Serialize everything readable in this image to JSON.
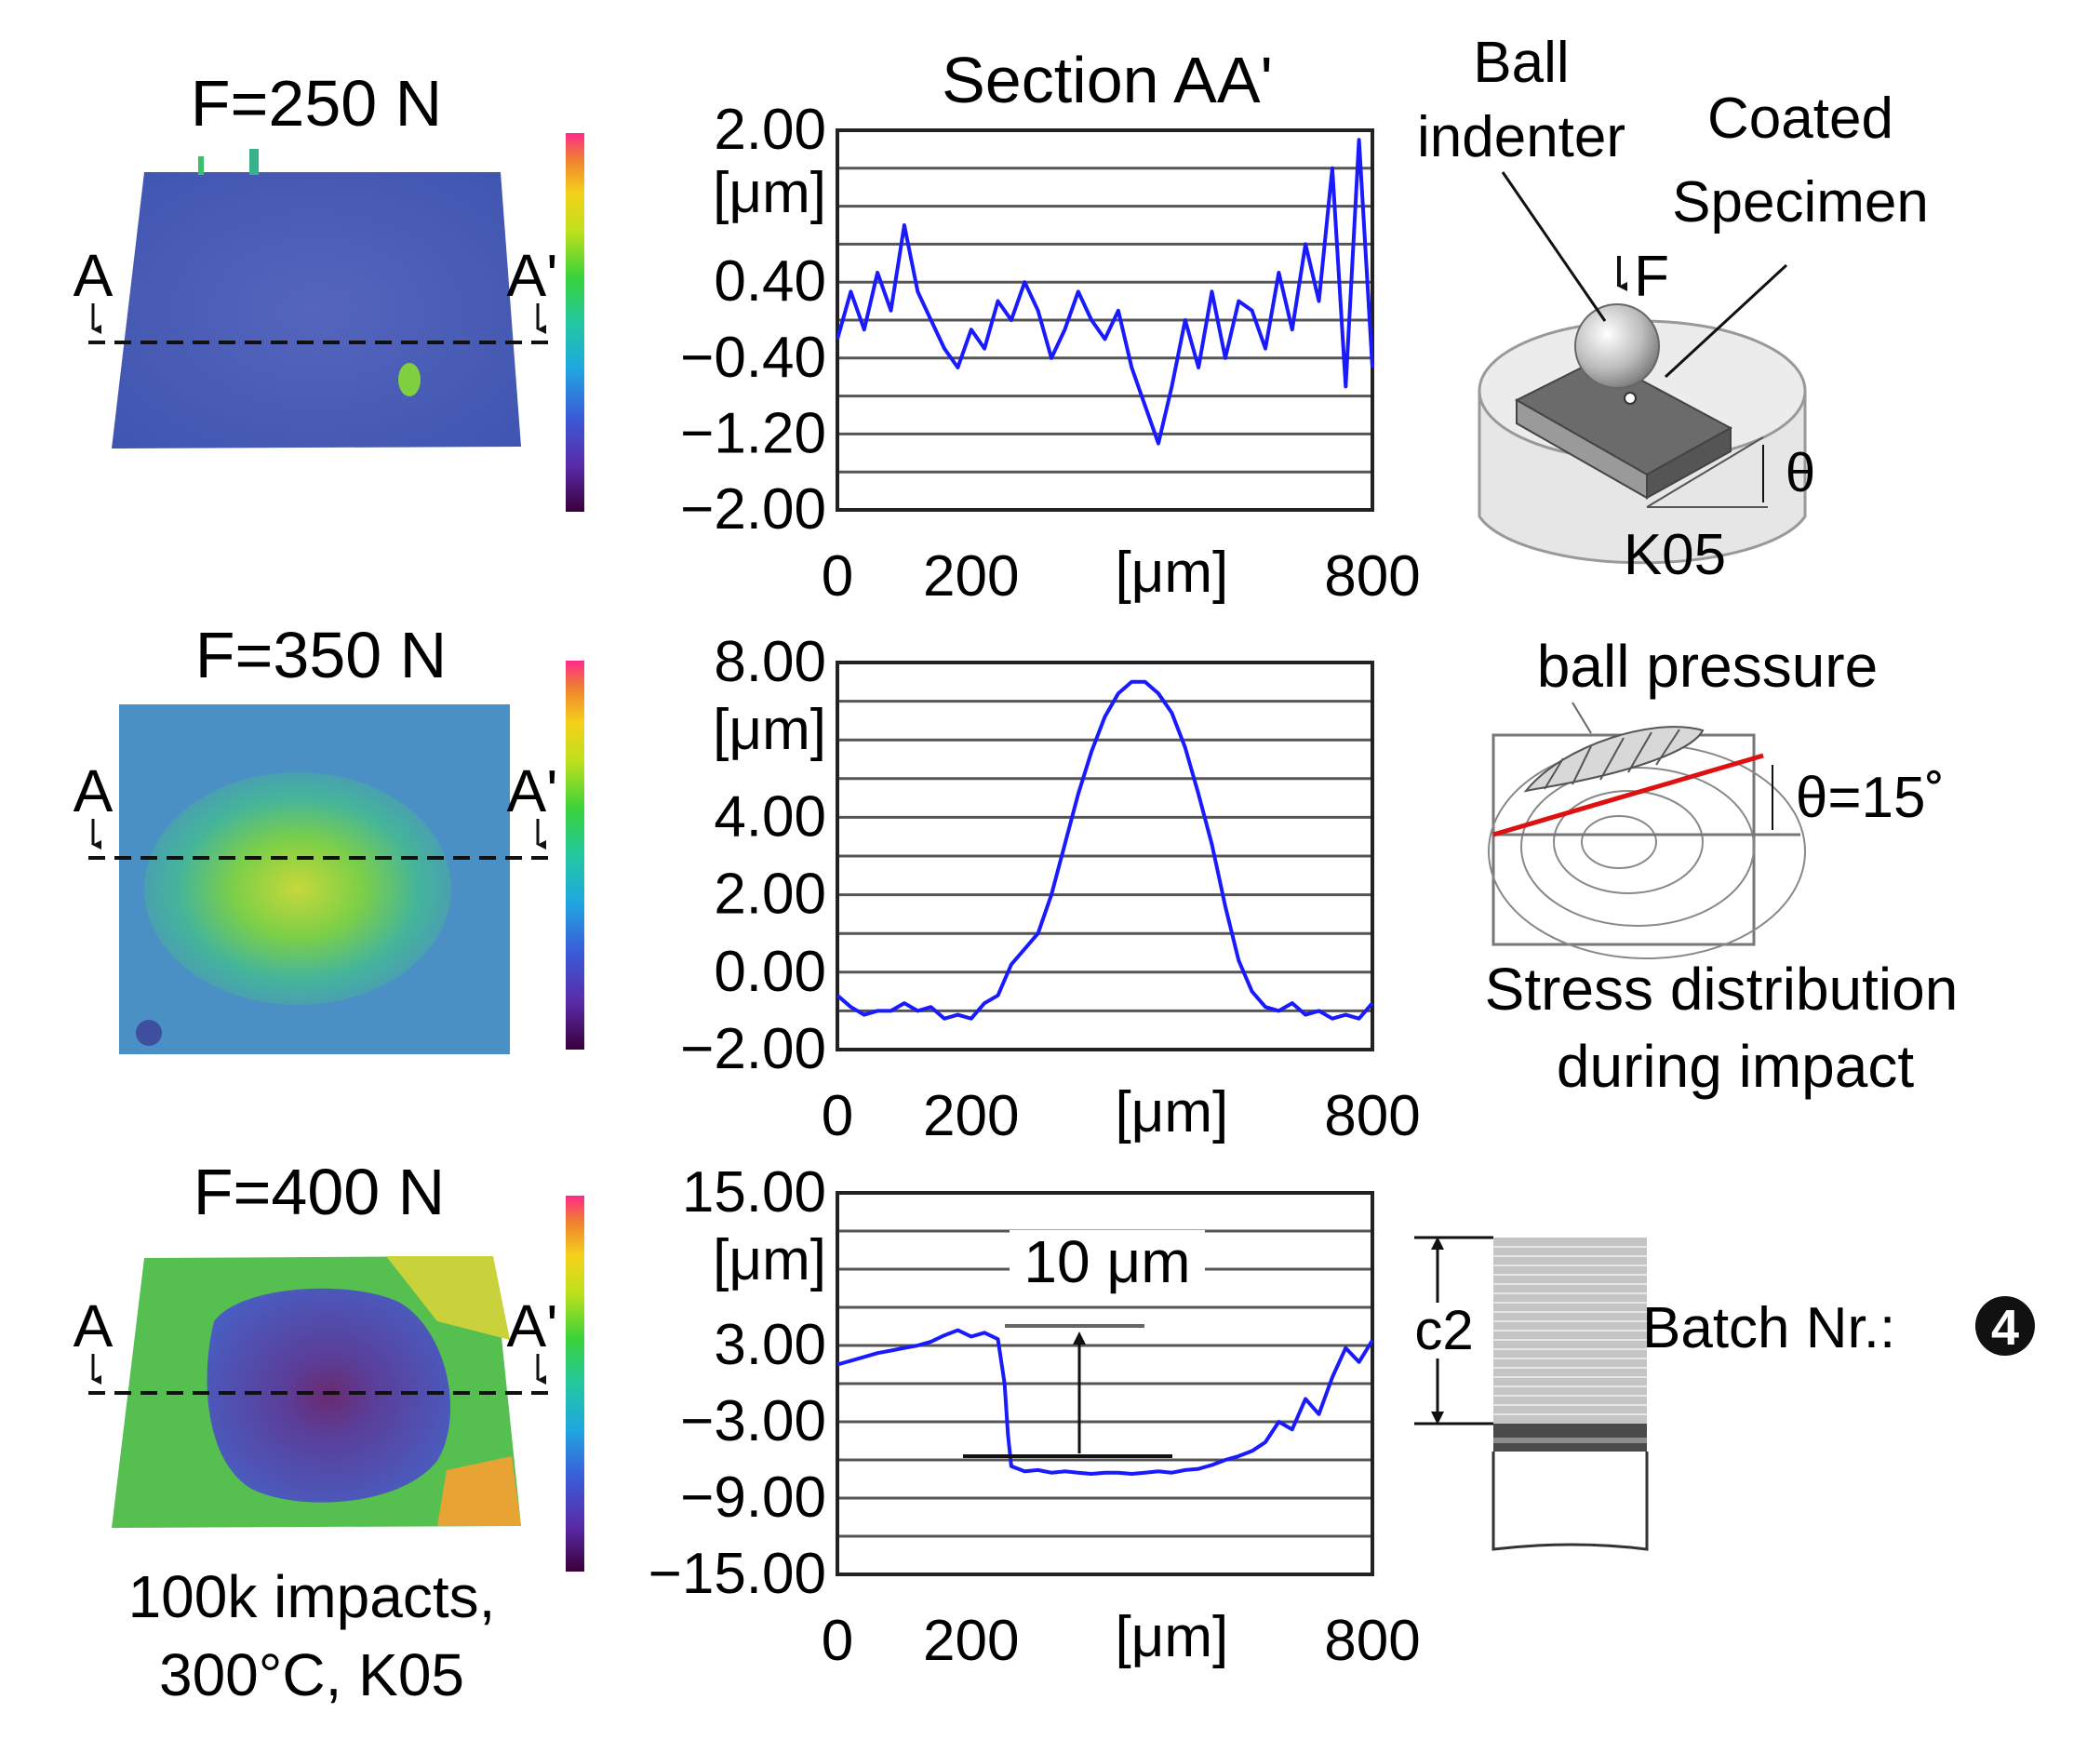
{
  "charts_header": {
    "section_title": "Section AA'"
  },
  "surface_maps": [
    {
      "force_label": "F=250 N",
      "marker_left": "A",
      "marker_right": "A'"
    },
    {
      "force_label": "F=350 N",
      "marker_left": "A",
      "marker_right": "A'"
    },
    {
      "force_label": "F=400 N",
      "marker_left": "A",
      "marker_right": "A'"
    }
  ],
  "conditions": {
    "line1": "100k impacts,",
    "line2": "300°C, K05"
  },
  "colors": {
    "profile": "#1a1aff",
    "red_line": "#dd1111",
    "map_blue": "#4f5fb8",
    "map_green": "#4fbf5a"
  },
  "chart_data": [
    {
      "type": "line",
      "title": "Section AA'",
      "ylabel": "[μm]",
      "xlabel": "[μm]",
      "xlim": [
        0,
        800
      ],
      "ylim": [
        -2.0,
        2.0
      ],
      "ytick_labels": [
        "2.00",
        "0.40",
        "−0.40",
        "−1.20",
        "−2.00"
      ],
      "xtick_labels": [
        "0",
        "200",
        "800"
      ],
      "x": [
        0,
        20,
        40,
        60,
        80,
        100,
        120,
        140,
        160,
        180,
        200,
        220,
        240,
        260,
        280,
        300,
        320,
        340,
        360,
        380,
        400,
        420,
        440,
        460,
        480,
        500,
        520,
        540,
        560,
        580,
        600,
        620,
        640,
        660,
        680,
        700,
        720,
        740,
        760,
        780,
        800
      ],
      "y": [
        -0.2,
        0.3,
        -0.1,
        0.5,
        0.1,
        1.0,
        0.3,
        0.0,
        -0.3,
        -0.5,
        -0.1,
        -0.3,
        0.2,
        0.0,
        0.4,
        0.1,
        -0.4,
        -0.1,
        0.3,
        0.0,
        -0.2,
        0.1,
        -0.5,
        -0.9,
        -1.3,
        -0.7,
        0.0,
        -0.5,
        0.3,
        -0.4,
        0.2,
        0.1,
        -0.3,
        0.5,
        -0.1,
        0.8,
        0.2,
        1.6,
        -0.7,
        1.9,
        -0.5
      ]
    },
    {
      "type": "line",
      "ylabel": "[μm]",
      "xlabel": "[μm]",
      "xlim": [
        0,
        800
      ],
      "ylim": [
        -2.0,
        8.0
      ],
      "ytick_labels": [
        "8.00",
        "4.00",
        "2.00",
        "0.00",
        "−2.00"
      ],
      "xtick_labels": [
        "0",
        "200",
        "800"
      ],
      "x": [
        0,
        20,
        40,
        60,
        80,
        100,
        120,
        140,
        160,
        180,
        200,
        220,
        240,
        260,
        280,
        300,
        320,
        340,
        360,
        380,
        400,
        420,
        440,
        460,
        480,
        500,
        520,
        540,
        560,
        580,
        600,
        620,
        640,
        660,
        680,
        700,
        720,
        740,
        760,
        780,
        800
      ],
      "y": [
        -0.6,
        -0.9,
        -1.1,
        -1.0,
        -1.0,
        -0.8,
        -1.0,
        -0.9,
        -1.2,
        -1.1,
        -1.2,
        -0.8,
        -0.6,
        0.2,
        0.6,
        1.0,
        2.0,
        3.3,
        4.6,
        5.7,
        6.6,
        7.2,
        7.5,
        7.5,
        7.2,
        6.7,
        5.8,
        4.6,
        3.3,
        1.7,
        0.3,
        -0.5,
        -0.9,
        -1.0,
        -0.8,
        -1.1,
        -1.0,
        -1.2,
        -1.1,
        -1.2,
        -0.8
      ]
    },
    {
      "type": "line",
      "ylabel": "[μm]",
      "xlabel": "[μm]",
      "xlim": [
        0,
        800
      ],
      "ylim": [
        -15.0,
        15.0
      ],
      "ytick_labels": [
        "15.00",
        "3.00",
        "−3.00",
        "−9.00",
        "−15.00"
      ],
      "xtick_labels": [
        "0",
        "200",
        "800"
      ],
      "x": [
        0,
        20,
        40,
        60,
        80,
        100,
        120,
        140,
        160,
        180,
        200,
        220,
        240,
        250,
        255,
        260,
        280,
        300,
        320,
        340,
        360,
        380,
        400,
        420,
        440,
        460,
        480,
        500,
        520,
        540,
        560,
        580,
        600,
        620,
        640,
        660,
        680,
        700,
        720,
        740,
        760,
        780,
        800
      ],
      "y": [
        1.5,
        1.8,
        2.1,
        2.4,
        2.6,
        2.8,
        3.0,
        3.3,
        3.8,
        4.2,
        3.7,
        4.0,
        3.5,
        0.0,
        -4.0,
        -6.5,
        -6.9,
        -6.8,
        -7.0,
        -6.9,
        -7.0,
        -7.1,
        -7.0,
        -7.0,
        -7.1,
        -7.0,
        -6.9,
        -7.0,
        -6.8,
        -6.7,
        -6.4,
        -6.0,
        -5.7,
        -5.3,
        -4.6,
        -3.0,
        -3.6,
        -1.2,
        -2.4,
        0.5,
        2.8,
        1.7,
        3.4
      ],
      "annotation": "10 μm"
    }
  ],
  "schematic": {
    "ball_label_1": "Ball",
    "ball_label_2": "indenter",
    "coated_label_1": "Coated",
    "coated_label_2": "Specimen",
    "force_label": "F",
    "theta_label": "θ",
    "k05_label": "K05"
  },
  "stress": {
    "ball_pressure_label": "ball pressure",
    "theta_value": "θ=15˚",
    "caption_line1": "Stress distribution",
    "caption_line2": "during impact"
  },
  "coating": {
    "c2_label": "c2",
    "batch_label": "Batch Nr.:",
    "batch_number": "4"
  }
}
